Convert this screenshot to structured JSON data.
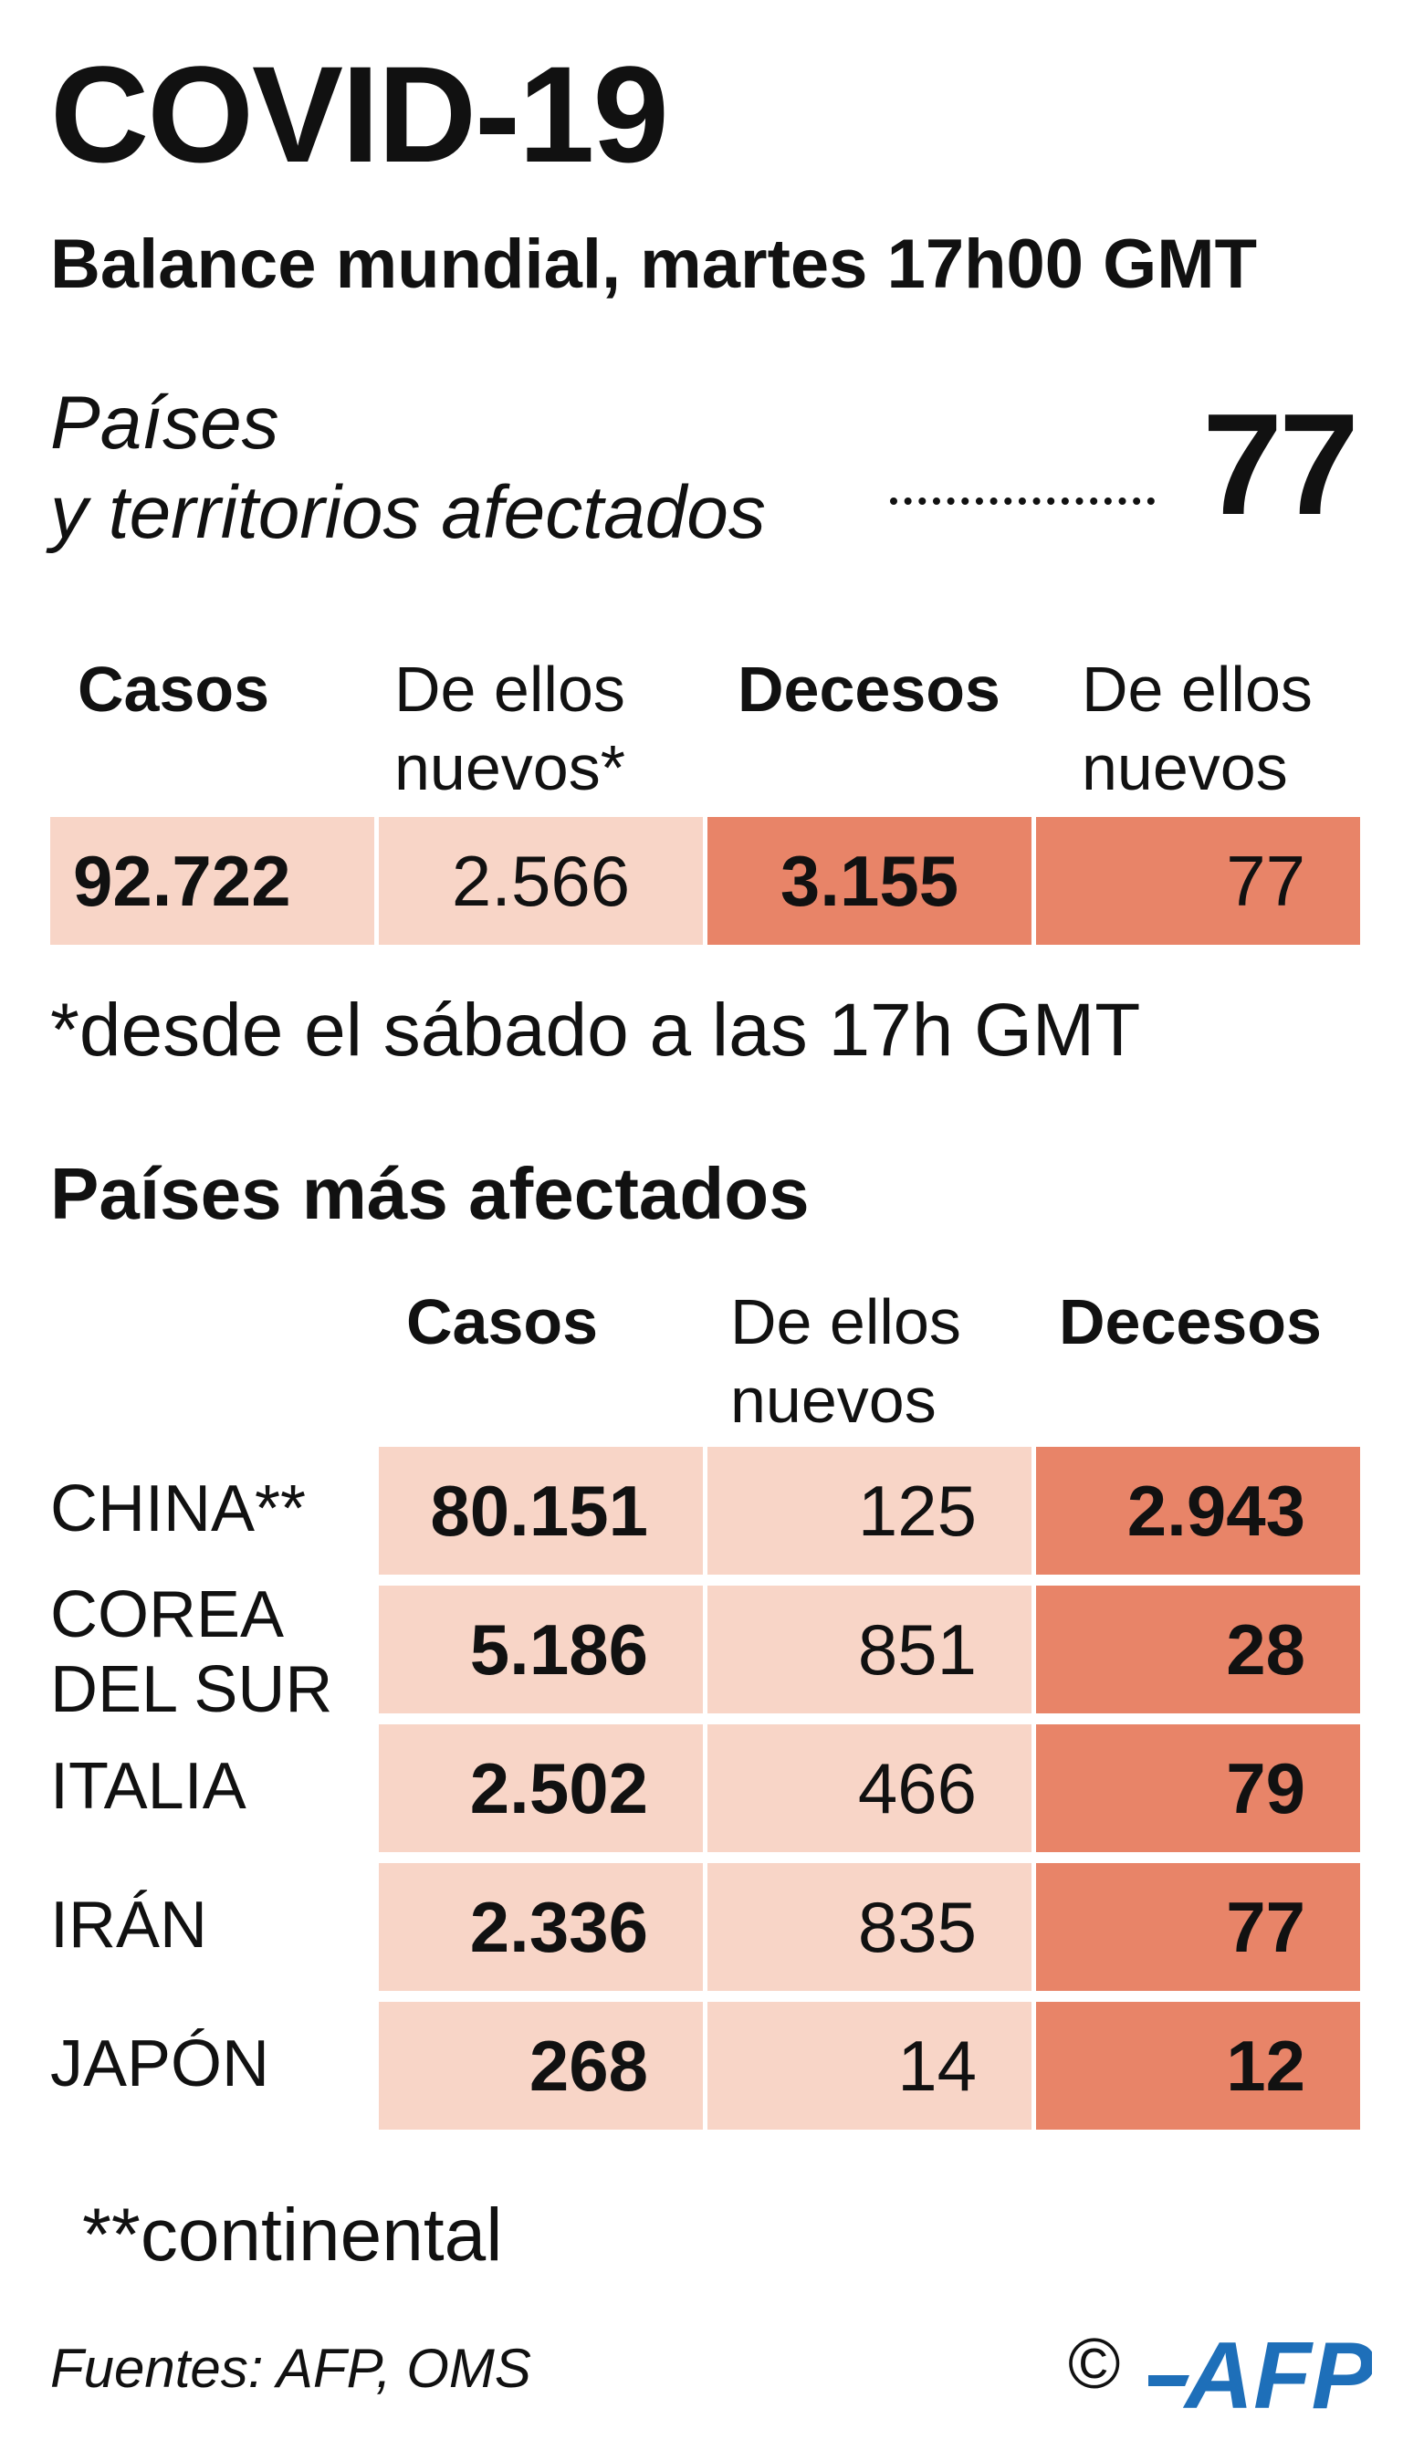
{
  "title": "COVID-19",
  "subtitle": "Balance mundial, martes 17h00 GMT",
  "affected": {
    "label_line1": "Países",
    "label_line2": "y territorios afectados",
    "value": "77"
  },
  "global_table": {
    "headers": [
      {
        "line1": "Casos",
        "line2": ""
      },
      {
        "line1": "De ellos",
        "line2": "nuevos*"
      },
      {
        "line1": "Decesos",
        "line2": ""
      },
      {
        "line1": "De ellos",
        "line2": "nuevos"
      }
    ],
    "values": [
      "92.722",
      "2.566",
      "3.155",
      "77"
    ]
  },
  "note_new": "*desde el sábado a las 17h GMT",
  "countries_title": "Países más afectados",
  "countries_table": {
    "headers": [
      {
        "line1": "Casos",
        "line2": ""
      },
      {
        "line1": "De ellos",
        "line2": "nuevos"
      },
      {
        "line1": "Decesos",
        "line2": ""
      }
    ],
    "rows": [
      {
        "country_line1": "CHINA**",
        "country_line2": "",
        "cases": "80.151",
        "new": "125",
        "deaths": "2.943"
      },
      {
        "country_line1": "COREA",
        "country_line2": "DEL SUR",
        "cases": "5.186",
        "new": "851",
        "deaths": "28"
      },
      {
        "country_line1": "ITALIA",
        "country_line2": "",
        "cases": "2.502",
        "new": "466",
        "deaths": "79"
      },
      {
        "country_line1": "IRÁN",
        "country_line2": "",
        "cases": "2.336",
        "new": "835",
        "deaths": "77"
      },
      {
        "country_line1": "JAPÓN",
        "country_line2": "",
        "cases": "268",
        "new": "14",
        "deaths": "12"
      }
    ]
  },
  "note_continental": "**continental",
  "source": "Fuentes: AFP, OMS",
  "copyright_symbol": "©",
  "logo_text": "AFP",
  "colors": {
    "light_cell": "#f8d5c7",
    "dark_cell": "#e88468",
    "logo_blue": "#1e6fb9"
  }
}
